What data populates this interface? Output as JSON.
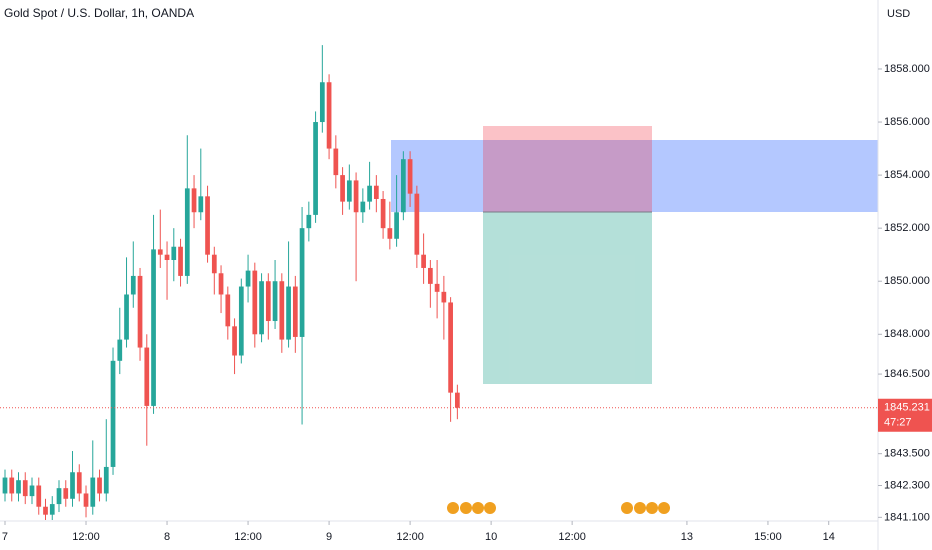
{
  "chart_data": {
    "type": "candlestick",
    "title": "Gold Spot / U.S. Dollar, 1h, OANDA",
    "currency": "USD",
    "up_color": "#26a69a",
    "down_color": "#ef5350",
    "grid": false,
    "x": [
      0,
      1,
      2,
      3,
      4,
      5,
      6,
      7,
      8,
      9,
      10,
      11,
      12,
      13,
      14,
      15,
      16,
      17,
      18,
      19,
      20,
      21,
      22,
      23,
      24,
      25,
      26,
      27,
      28,
      29,
      30,
      31,
      32,
      33,
      34,
      35,
      36,
      37,
      38,
      39,
      40,
      41,
      42,
      43,
      44,
      45,
      46,
      47,
      48,
      49,
      50,
      51,
      52,
      53,
      54,
      55,
      56,
      57,
      58,
      59,
      60,
      61,
      62,
      63,
      64,
      65,
      66,
      67
    ],
    "open": [
      1842.0,
      1842.6,
      1842.0,
      1842.5,
      1841.9,
      1842.3,
      1841.5,
      1841.2,
      1841.6,
      1842.2,
      1841.8,
      1842.8,
      1842.0,
      1841.5,
      1842.6,
      1842.0,
      1843.0,
      1847.0,
      1847.8,
      1849.5,
      1850.2,
      1847.5,
      1845.3,
      1851.2,
      1851.0,
      1850.8,
      1851.3,
      1850.2,
      1853.5,
      1852.6,
      1853.2,
      1851.0,
      1850.3,
      1849.5,
      1848.3,
      1847.2,
      1849.8,
      1850.4,
      1848.0,
      1850.0,
      1848.5,
      1850.0,
      1847.8,
      1849.8,
      1847.9,
      1852.0,
      1852.5,
      1856.0,
      1857.5,
      1855.0,
      1854.0,
      1853.0,
      1853.8,
      1852.6,
      1853.0,
      1853.6,
      1853.1,
      1852.0,
      1851.6,
      1852.6,
      1854.6,
      1853.3,
      1851.0,
      1850.5,
      1849.9,
      1849.6,
      1849.2,
      1845.8
    ],
    "high": [
      1842.9,
      1842.9,
      1842.8,
      1842.8,
      1842.6,
      1842.6,
      1841.8,
      1841.9,
      1842.5,
      1842.5,
      1843.6,
      1843.1,
      1842.3,
      1844.0,
      1842.9,
      1844.8,
      1847.5,
      1849.0,
      1850.9,
      1851.5,
      1850.5,
      1848.0,
      1852.5,
      1852.7,
      1851.5,
      1852.0,
      1851.6,
      1855.5,
      1854.0,
      1855.0,
      1853.6,
      1851.3,
      1850.6,
      1849.8,
      1848.6,
      1850.1,
      1851.0,
      1850.7,
      1850.3,
      1850.3,
      1850.8,
      1850.3,
      1851.5,
      1850.2,
      1852.8,
      1853.0,
      1856.4,
      1858.9,
      1857.8,
      1855.5,
      1854.3,
      1854.4,
      1854.1,
      1853.5,
      1854.5,
      1854.0,
      1853.4,
      1853.0,
      1854.0,
      1854.9,
      1854.9,
      1853.6,
      1851.8,
      1850.8,
      1850.8,
      1850.2,
      1849.4,
      1846.1
    ],
    "low": [
      1841.7,
      1841.7,
      1841.7,
      1841.6,
      1841.6,
      1841.2,
      1841.0,
      1841.0,
      1841.3,
      1841.5,
      1841.5,
      1841.7,
      1841.1,
      1841.2,
      1841.7,
      1841.7,
      1842.7,
      1846.5,
      1847.5,
      1849.0,
      1847.0,
      1843.8,
      1845.0,
      1850.5,
      1849.3,
      1850.0,
      1849.8,
      1849.9,
      1852.0,
      1852.3,
      1850.7,
      1849.5,
      1848.8,
      1847.8,
      1846.5,
      1846.9,
      1849.2,
      1847.5,
      1847.7,
      1847.8,
      1848.2,
      1847.3,
      1847.5,
      1847.3,
      1844.6,
      1851.5,
      1852.2,
      1855.6,
      1854.6,
      1853.5,
      1852.5,
      1852.7,
      1850.0,
      1852.2,
      1852.7,
      1852.6,
      1851.6,
      1851.2,
      1851.3,
      1852.3,
      1852.8,
      1850.5,
      1849.9,
      1849.0,
      1848.6,
      1847.8,
      1844.7,
      1844.8
    ],
    "close": [
      1842.6,
      1842.0,
      1842.5,
      1841.9,
      1842.3,
      1841.5,
      1841.2,
      1841.6,
      1842.2,
      1841.8,
      1842.8,
      1842.0,
      1841.5,
      1842.6,
      1842.0,
      1843.0,
      1847.0,
      1847.8,
      1849.5,
      1850.2,
      1847.5,
      1845.3,
      1851.2,
      1851.0,
      1850.8,
      1851.3,
      1850.2,
      1853.5,
      1852.6,
      1853.2,
      1851.0,
      1850.3,
      1849.5,
      1848.3,
      1847.2,
      1849.8,
      1850.4,
      1848.0,
      1850.0,
      1848.5,
      1850.0,
      1847.8,
      1849.8,
      1847.9,
      1852.0,
      1852.5,
      1856.0,
      1857.5,
      1855.0,
      1854.0,
      1853.0,
      1853.8,
      1852.6,
      1853.0,
      1853.6,
      1853.1,
      1852.0,
      1851.6,
      1852.6,
      1854.6,
      1853.3,
      1851.0,
      1850.5,
      1849.9,
      1849.6,
      1849.2,
      1845.8,
      1845.231
    ],
    "xlim": [
      -0.74,
      129.3
    ],
    "xticks": [
      {
        "value": 0,
        "label": "7"
      },
      {
        "value": 12,
        "label": "12:00"
      },
      {
        "value": 24,
        "label": "8"
      },
      {
        "value": 36,
        "label": "12:00"
      },
      {
        "value": 48,
        "label": "9"
      },
      {
        "value": 60,
        "label": "12:00"
      },
      {
        "value": 72,
        "label": "10"
      },
      {
        "value": 84,
        "label": "12:00"
      },
      {
        "value": 101,
        "label": "13"
      },
      {
        "value": 113,
        "label": "15:00"
      },
      {
        "value": 122,
        "label": "14"
      }
    ],
    "ylim": [
      1841.0,
      1860.6
    ],
    "yticks": [
      {
        "value": 1858,
        "label": "1858.000"
      },
      {
        "value": 1856,
        "label": "1856.000"
      },
      {
        "value": 1854,
        "label": "1854.000"
      },
      {
        "value": 1852,
        "label": "1852.000"
      },
      {
        "value": 1850,
        "label": "1850.000"
      },
      {
        "value": 1848,
        "label": "1848.000"
      },
      {
        "value": 1846.5,
        "label": "1846.500"
      },
      {
        "value": 1843.5,
        "label": "1843.500"
      },
      {
        "value": 1842.3,
        "label": "1842.300"
      },
      {
        "value": 1841.1,
        "label": "1841.100"
      }
    ],
    "last_price": {
      "value": 1845.231,
      "label": "1845.231"
    },
    "countdown": "47:27"
  }
}
